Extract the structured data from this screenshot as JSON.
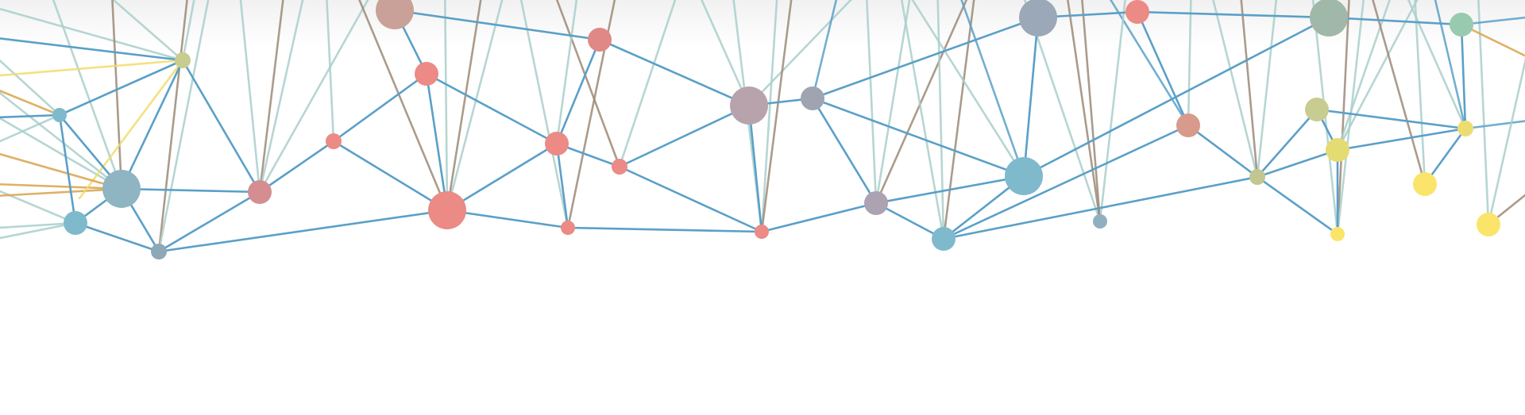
{
  "banner": {
    "background": "#ffffff",
    "palette": {
      "blue_edge": "#5aa0c8",
      "teal_edge": "#a9cfcb",
      "brown_edge": "#9c8a78",
      "yellow_edge": "#f2dc6a",
      "orange_edge": "#d9a24a",
      "coral_node": "#ec8a86",
      "teal_node": "#7fb9cc",
      "yellow_node": "#fae56a",
      "mauve_node": "#b8a3ac",
      "olive_node": "#c9cc90"
    }
  }
}
